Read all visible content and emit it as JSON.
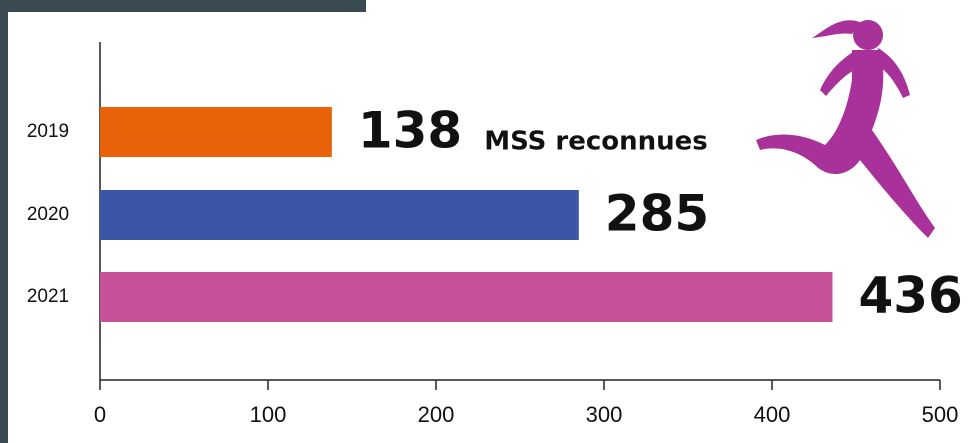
{
  "chart_data": {
    "type": "bar",
    "orientation": "horizontal",
    "categories": [
      "2019",
      "2020",
      "2021"
    ],
    "values": [
      138,
      285,
      436
    ],
    "colors": [
      "#e8620a",
      "#3b56a4",
      "#c8529a"
    ],
    "annotation": "MSS reconnues",
    "xlim": [
      0,
      500
    ],
    "xticks": [
      0,
      100,
      200,
      300,
      400,
      500
    ]
  }
}
